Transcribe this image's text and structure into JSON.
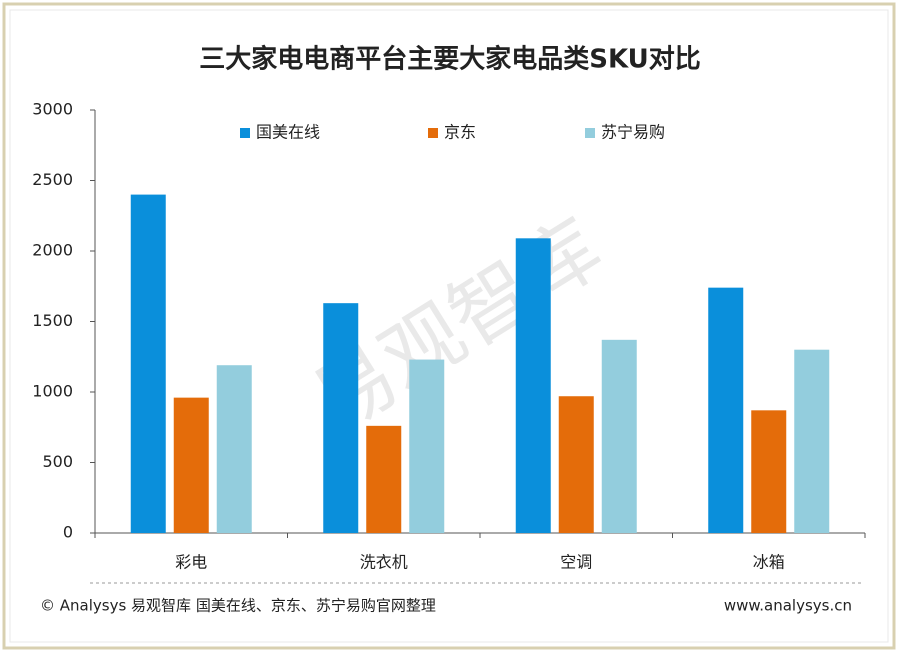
{
  "chart_data": {
    "type": "bar",
    "title": "三大家电电商平台主要大家电品类SKU对比",
    "categories": [
      "彩电",
      "洗衣机",
      "空调",
      "冰箱"
    ],
    "series": [
      {
        "name": "国美在线",
        "color": "#0a8fdb",
        "values": [
          2400,
          1630,
          2090,
          1740
        ]
      },
      {
        "name": "京东",
        "color": "#e46c0a",
        "values": [
          960,
          760,
          970,
          870
        ]
      },
      {
        "name": "苏宁易购",
        "color": "#93cddd",
        "values": [
          1190,
          1230,
          1370,
          1300
        ]
      }
    ],
    "ylim": [
      0,
      3000
    ],
    "yticks": [
      0,
      500,
      1000,
      1500,
      2000,
      2500,
      3000
    ],
    "grid": false,
    "legend": "top",
    "watermark": "易观智库",
    "source": "© Analysys 易观智库 国美在线、京东、苏宁易购官网整理",
    "url": "www.analysys.cn"
  }
}
